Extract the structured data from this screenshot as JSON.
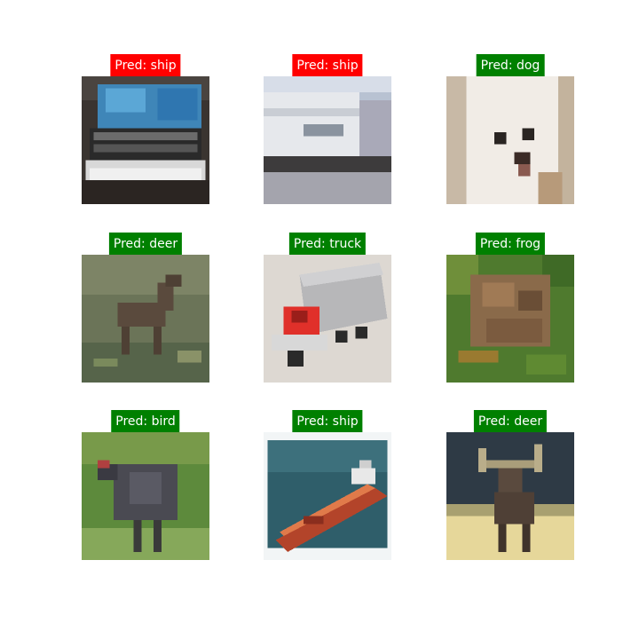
{
  "colors": {
    "correct": "#008000",
    "incorrect": "#ff0000",
    "background": "#ffffff"
  },
  "predictions": [
    {
      "label": "Pred: ship",
      "status": "incorrect",
      "image": "blue-truck-front-photo"
    },
    {
      "label": "Pred: ship",
      "status": "incorrect",
      "image": "white-trailer-side-photo"
    },
    {
      "label": "Pred: dog",
      "status": "correct",
      "image": "white-dog-face-photo"
    },
    {
      "label": "Pred: deer",
      "status": "correct",
      "image": "deer-in-grass-photo"
    },
    {
      "label": "Pred: truck",
      "status": "correct",
      "image": "red-box-truck-photo"
    },
    {
      "label": "Pred: frog",
      "status": "correct",
      "image": "brown-frog-on-grass-photo"
    },
    {
      "label": "Pred: bird",
      "status": "correct",
      "image": "dark-bird-on-grass-photo"
    },
    {
      "label": "Pred: ship",
      "status": "correct",
      "image": "red-ship-on-water-photo"
    },
    {
      "label": "Pred: deer",
      "status": "correct",
      "image": "antlered-deer-photo"
    }
  ]
}
